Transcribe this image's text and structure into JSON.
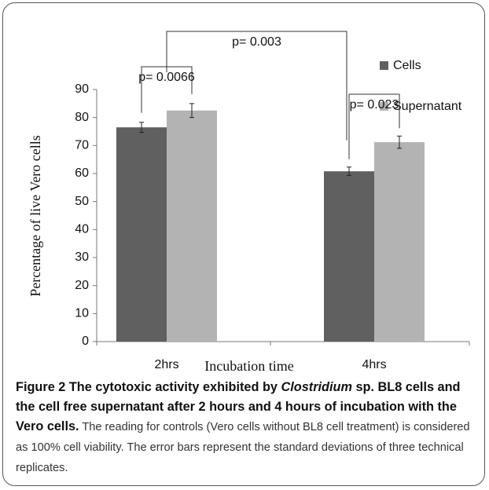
{
  "chart_data": {
    "type": "bar",
    "y_label": "Percentage  of  live Vero cells",
    "x_label": "Incubation time",
    "categories": [
      "2hrs",
      "4hrs"
    ],
    "series": [
      {
        "name": "Cells",
        "color": "#606060",
        "values": [
          76.5,
          60.8
        ],
        "errors": [
          1.8,
          1.5
        ]
      },
      {
        "name": "Supernatant",
        "color": "#b3b3b3",
        "values": [
          82.5,
          71.2
        ],
        "errors": [
          2.5,
          2.2
        ]
      }
    ],
    "ylim": [
      0,
      90
    ],
    "yticks": [
      0,
      10,
      20,
      30,
      40,
      50,
      60,
      70,
      80,
      90
    ],
    "legend": "right",
    "annotations": [
      "p= 0.0066",
      "p= 0.003",
      "p= 0.023"
    ]
  },
  "caption": {
    "parts": [
      "Figure 2 The cytotoxic activity exhibited by ",
      "Clostridium",
      " sp. BL8 cells and the cell free supernatant after 2 hours and 4 hours of incubation with the Vero cells.",
      " The reading for controls (Vero cells without BL8 cell treatment) is considered as 100% cell viability. The error bars represent the standard deviations of three technical replicates."
    ]
  }
}
